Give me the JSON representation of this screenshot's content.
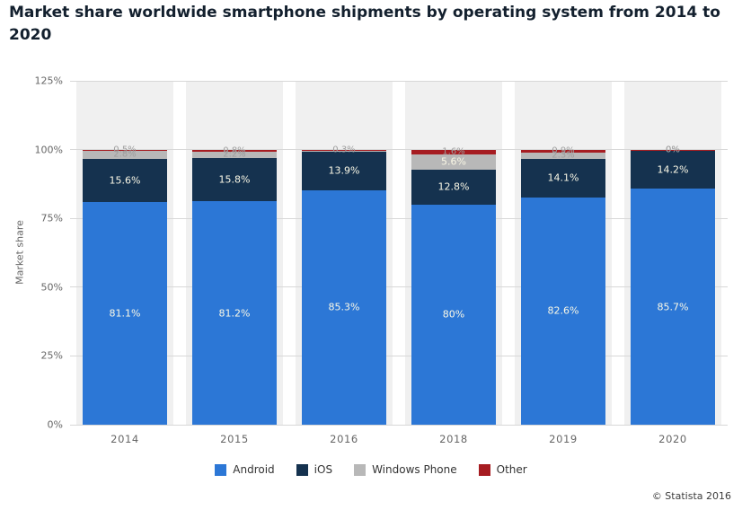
{
  "title": "Market share worldwide smartphone shipments by operating system from 2014 to 2020",
  "footer": {
    "copyright": "© Statista 2016"
  },
  "colors": {
    "android": "#2c77d6",
    "ios": "#15324f",
    "windows_phone": "#b8b8b8",
    "other": "#a61c21",
    "band": "#f0f0f0",
    "gridline": "#d8d8d8",
    "axis_text": "#666666",
    "value_label_inside": "#faf8e6",
    "value_label_outside": "#9d9d9d"
  },
  "chart_data": {
    "type": "bar",
    "stacked": true,
    "title": "Market share worldwide smartphone shipments by operating system from 2014 to 2020",
    "xlabel": "",
    "ylabel": "Market share",
    "categories": [
      "2014",
      "2015",
      "2016",
      "2018",
      "2019",
      "2020"
    ],
    "series": [
      {
        "name": "Android",
        "color": "#2c77d6",
        "values": [
          81.1,
          81.2,
          85.3,
          80,
          82.6,
          85.7
        ],
        "labels": [
          "81.1%",
          "81.2%",
          "85.3%",
          "80%",
          "82.6%",
          "85.7%"
        ]
      },
      {
        "name": "iOS",
        "color": "#15324f",
        "values": [
          15.6,
          15.8,
          13.9,
          12.8,
          14.1,
          14.2
        ],
        "labels": [
          "15.6%",
          "15.8%",
          "13.9%",
          "12.8%",
          "14.1%",
          "14.2%"
        ]
      },
      {
        "name": "Windows Phone",
        "color": "#b8b8b8",
        "values": [
          2.8,
          2.2,
          0.5,
          5.6,
          2.3,
          0
        ],
        "labels": [
          "2.8%",
          "2.2%",
          null,
          "5.6%",
          "2.3%",
          "0%"
        ]
      },
      {
        "name": "Other",
        "color": "#a61c21",
        "values": [
          0.5,
          0.8,
          0.3,
          1.6,
          0.9,
          0.1
        ],
        "labels": [
          "0.5%",
          "0.8%",
          "0.3%",
          "1.6%",
          "0.9%",
          "0%"
        ]
      }
    ],
    "ylim": [
      0,
      125
    ],
    "yticks": [
      0,
      25,
      50,
      75,
      100,
      125
    ],
    "ytick_labels": [
      "0%",
      "25%",
      "50%",
      "75%",
      "100%",
      "125%"
    ],
    "grid": true,
    "legend": [
      "Android",
      "iOS",
      "Windows Phone",
      "Other"
    ],
    "legend_position": "bottom"
  }
}
